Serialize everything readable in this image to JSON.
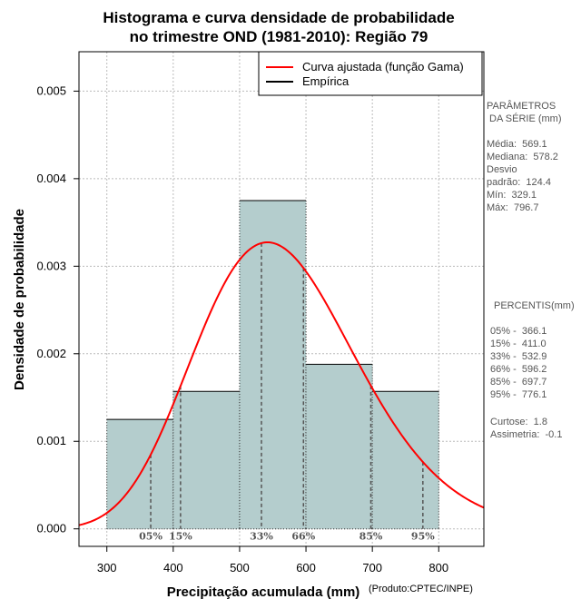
{
  "chart_data": {
    "type": "bar",
    "title_lines": [
      "Histograma e curva densidade de probabilidade",
      "no trimestre OND (1981-2010): Região 79"
    ],
    "xlabel": "Precipitação acumulada (mm)",
    "ylabel": "Densidade de probabilidade",
    "xlim": [
      258,
      868
    ],
    "ylim": [
      -0.0002,
      0.00545
    ],
    "x_ticks": [
      300,
      400,
      500,
      600,
      700,
      800
    ],
    "y_ticks": [
      0.0,
      0.001,
      0.002,
      0.003,
      0.004,
      0.005
    ],
    "y_tick_labels": [
      "0.000",
      "0.001",
      "0.002",
      "0.003",
      "0.004",
      "0.005"
    ],
    "grid": true,
    "bins": [
      {
        "from": 300,
        "to": 400,
        "density": 0.00125
      },
      {
        "from": 400,
        "to": 500,
        "density": 0.00157
      },
      {
        "from": 500,
        "to": 600,
        "density": 0.00375
      },
      {
        "from": 600,
        "to": 700,
        "density": 0.00188
      },
      {
        "from": 700,
        "to": 800,
        "density": 0.00157
      }
    ],
    "gamma_fit": {
      "shape": 20.93,
      "scale": 27.19,
      "color": "#ff0000",
      "label": "Curva ajustada (função Gama)"
    },
    "empirical_legend_label": "Empírica",
    "bar_color": "#b4cdcd",
    "percentile_markers": [
      {
        "label": "05%",
        "value": 366.1
      },
      {
        "label": "15%",
        "value": 411.0
      },
      {
        "label": "33%",
        "value": 532.9
      },
      {
        "label": "66%",
        "value": 596.2
      },
      {
        "label": "85%",
        "value": 697.7
      },
      {
        "label": "95%",
        "value": 776.1
      }
    ],
    "legend_position": "top-right"
  },
  "side_panel": {
    "params_title_1": "PARÂMETROS",
    "params_title_2": " DA SÉRIE (mm)",
    "media": "Média:  569.1",
    "mediana": "Mediana:  578.2",
    "desvio_1": "Desvio",
    "desvio_2": "padrão:  124.4",
    "min": "Mín:  329.1",
    "max": "Máx:  796.7",
    "percentis_title": "PERCENTIS(mm)",
    "p05": "05% -  366.1",
    "p15": "15% -  411.0",
    "p33": "33% -  532.9",
    "p66": "66% -  596.2",
    "p85": "85% -  697.7",
    "p95": "95% -  776.1",
    "curtose": "Curtose:  1.8",
    "assimetria": "Assimetria:  -0.1"
  },
  "credit": "(Produto:CPTEC/INPE)"
}
